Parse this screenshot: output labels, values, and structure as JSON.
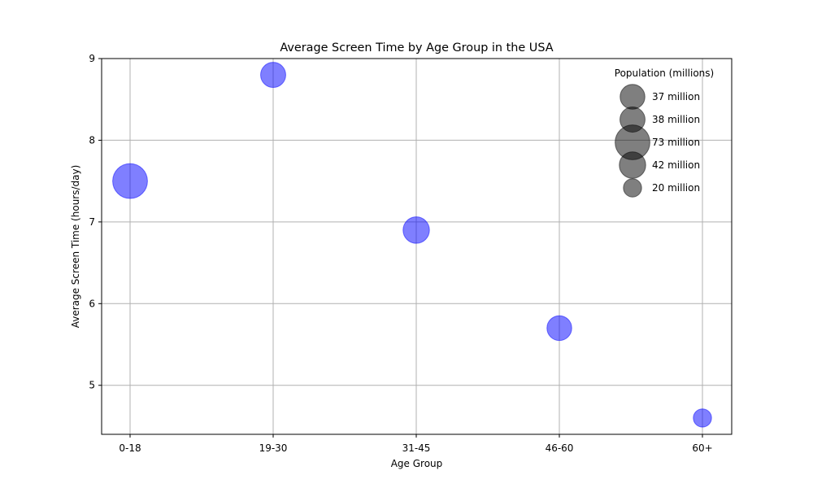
{
  "chart_data": {
    "type": "scatter",
    "title": "Average Screen Time by Age Group in the USA",
    "xlabel": "Age Group",
    "ylabel": "Average Screen Time (hours/day)",
    "categories": [
      "0-18",
      "19-30",
      "31-45",
      "46-60",
      "60+"
    ],
    "values": [
      7.5,
      8.8,
      6.9,
      5.7,
      4.6
    ],
    "population_millions": [
      73,
      38,
      42,
      37,
      20
    ],
    "ylim": [
      4.4,
      9.0
    ],
    "yticks": [
      5,
      6,
      7,
      8,
      9
    ],
    "grid": true,
    "marker_color": "#0000ff",
    "marker_opacity": 0.5,
    "legend": {
      "title": "Population (millions)",
      "placement": "top-right",
      "entries": [
        {
          "label": "37 million",
          "value": 37
        },
        {
          "label": "38 million",
          "value": 38
        },
        {
          "label": "73 million",
          "value": 73
        },
        {
          "label": "42 million",
          "value": 42
        },
        {
          "label": "20 million",
          "value": 20
        }
      ],
      "marker_color": "#000000"
    }
  }
}
